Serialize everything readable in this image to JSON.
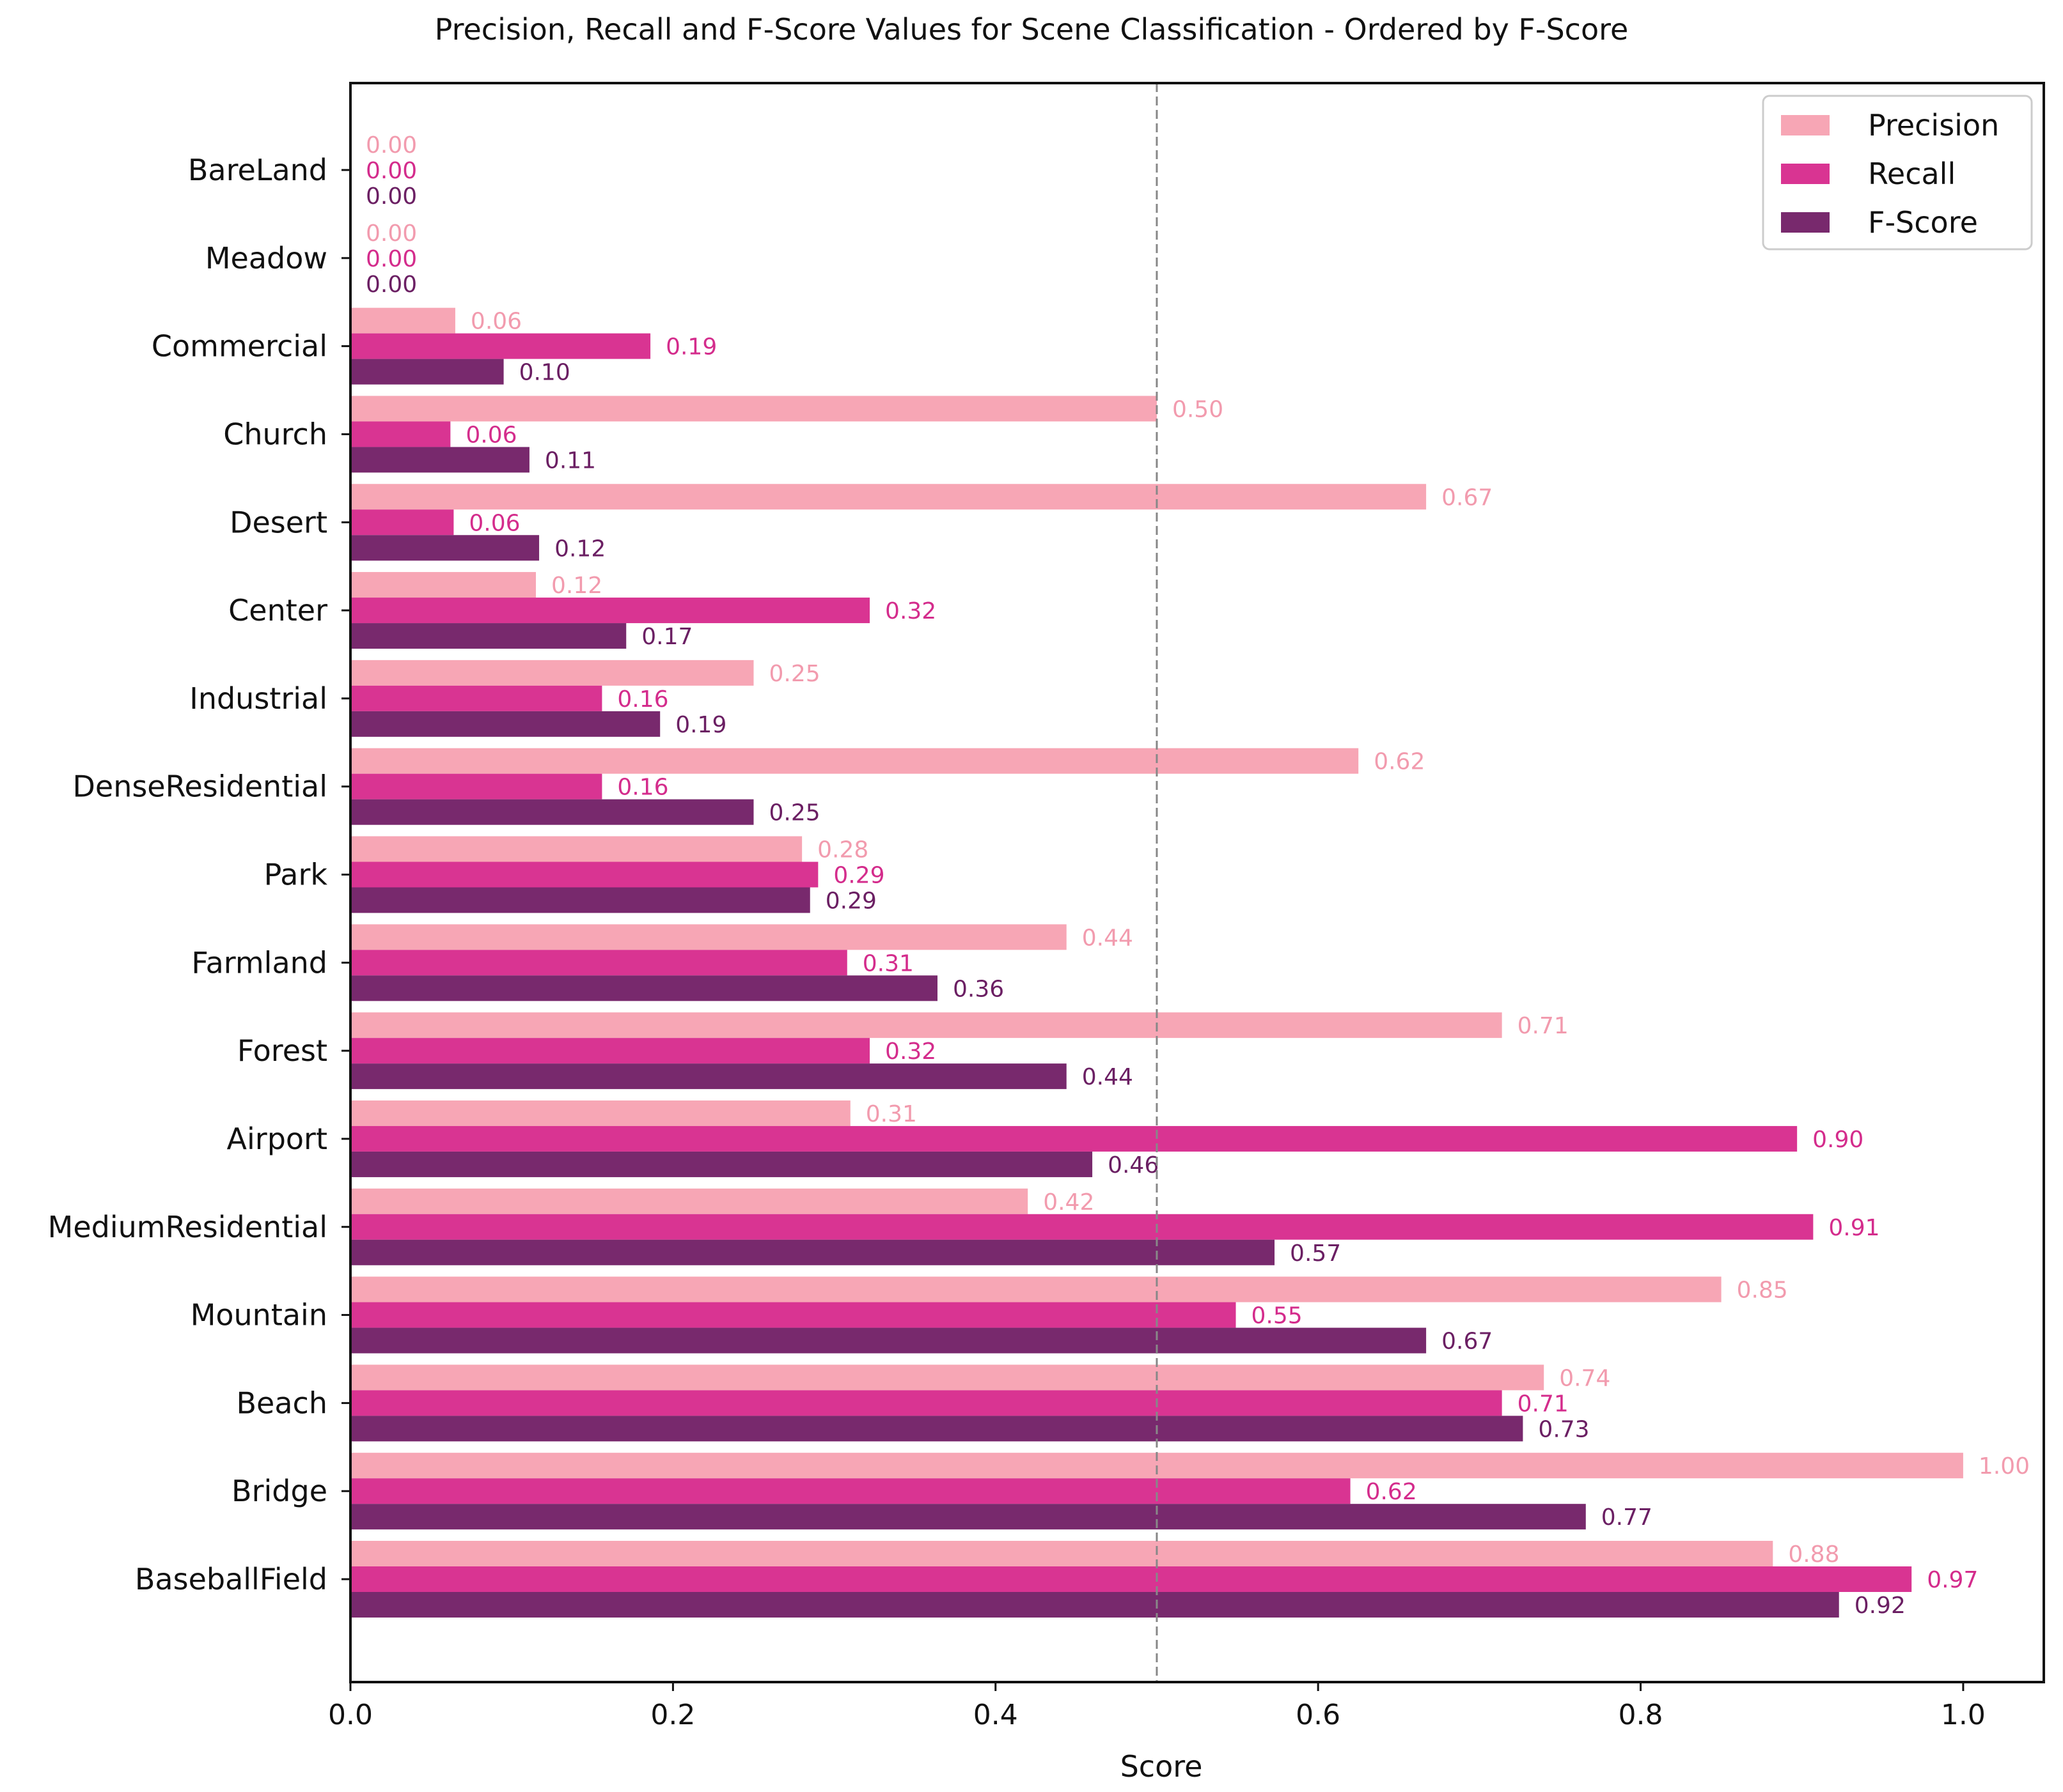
{
  "chart_data": {
    "type": "bar",
    "orientation": "horizontal",
    "title": "Precision, Recall and F-Score Values for Scene Classification - Ordered by F-Score",
    "xlabel": "Score",
    "ylabel": "",
    "xlim": [
      0.0,
      1.05
    ],
    "xticks": [
      "0.0",
      "0.2",
      "0.4",
      "0.6",
      "0.8",
      "1.0"
    ],
    "reference_line": {
      "x": 0.5,
      "style": "dashed",
      "color": "#888888"
    },
    "grid": false,
    "legend": "top-right",
    "categories": [
      "BareLand",
      "Meadow",
      "Commercial",
      "Church",
      "Desert",
      "Center",
      "Industrial",
      "DenseResidential",
      "Park",
      "Farmland",
      "Forest",
      "Airport",
      "MediumResidential",
      "Mountain",
      "Beach",
      "Bridge",
      "BaseballField"
    ],
    "series": [
      {
        "name": "Precision",
        "color": "#f7a6b5",
        "label_color": "#f29bae",
        "values": [
          0.0,
          0.0,
          0.065,
          0.5,
          0.667,
          0.115,
          0.25,
          0.625,
          0.28,
          0.444,
          0.714,
          0.31,
          0.42,
          0.85,
          0.74,
          1.0,
          0.882
        ],
        "labels": [
          "0.00",
          "0.00",
          "0.06",
          "0.50",
          "0.67",
          "0.12",
          "0.25",
          "0.62",
          "0.28",
          "0.44",
          "0.71",
          "0.31",
          "0.42",
          "0.85",
          "0.74",
          "1.00",
          "0.88"
        ]
      },
      {
        "name": "Recall",
        "color": "#d93492",
        "label_color": "#d42c8c",
        "values": [
          0.0,
          0.0,
          0.186,
          0.062,
          0.064,
          0.322,
          0.156,
          0.156,
          0.29,
          0.308,
          0.322,
          0.897,
          0.907,
          0.549,
          0.714,
          0.62,
          0.968
        ],
        "labels": [
          "0.00",
          "0.00",
          "0.19",
          "0.06",
          "0.06",
          "0.32",
          "0.16",
          "0.16",
          "0.29",
          "0.31",
          "0.32",
          "0.90",
          "0.91",
          "0.55",
          "0.71",
          "0.62",
          "0.97"
        ]
      },
      {
        "name": "F-Score",
        "color": "#78296d",
        "label_color": "#6b1f63",
        "values": [
          0.0,
          0.0,
          0.095,
          0.111,
          0.117,
          0.171,
          0.192,
          0.25,
          0.285,
          0.364,
          0.444,
          0.46,
          0.573,
          0.667,
          0.727,
          0.766,
          0.923
        ],
        "labels": [
          "0.00",
          "0.00",
          "0.10",
          "0.11",
          "0.12",
          "0.17",
          "0.19",
          "0.25",
          "0.29",
          "0.36",
          "0.44",
          "0.46",
          "0.57",
          "0.67",
          "0.73",
          "0.77",
          "0.92"
        ]
      }
    ]
  }
}
